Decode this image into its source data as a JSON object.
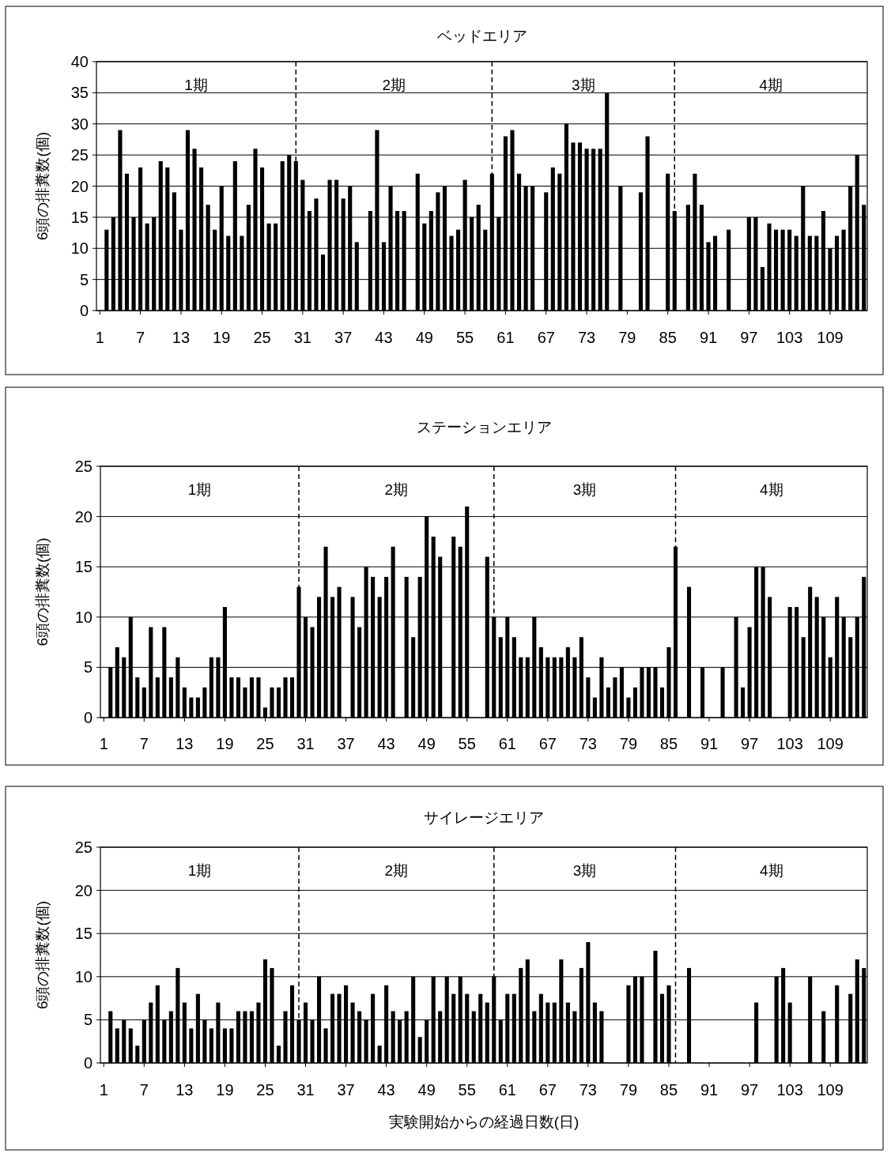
{
  "chart_data": [
    {
      "type": "bar",
      "title": "ベッドエリア",
      "ylabel": "6頭の排糞数(個)",
      "color": "#000000",
      "grid": "y",
      "x": [
        1,
        2,
        3,
        4,
        5,
        6,
        7,
        8,
        9,
        10,
        11,
        12,
        13,
        14,
        15,
        16,
        17,
        18,
        19,
        20,
        21,
        22,
        23,
        24,
        25,
        26,
        27,
        28,
        29,
        30,
        31,
        32,
        33,
        34,
        35,
        36,
        37,
        38,
        39,
        40,
        41,
        42,
        43,
        44,
        45,
        46,
        47,
        48,
        49,
        50,
        51,
        52,
        53,
        54,
        55,
        56,
        57,
        58,
        59,
        60,
        61,
        62,
        63,
        64,
        65,
        66,
        67,
        68,
        69,
        70,
        71,
        72,
        73,
        74,
        75,
        76,
        77,
        78,
        79,
        80,
        81,
        82,
        83,
        84,
        85,
        86,
        87,
        88,
        89,
        90,
        91,
        92,
        93,
        94,
        95,
        96,
        97,
        98,
        99,
        100,
        101,
        102,
        103,
        104,
        105,
        106,
        107,
        108,
        109,
        110,
        111,
        112,
        113,
        114
      ],
      "values": [
        0,
        13,
        15,
        29,
        22,
        15,
        23,
        14,
        15,
        24,
        23,
        19,
        13,
        29,
        26,
        23,
        17,
        13,
        20,
        12,
        24,
        12,
        17,
        26,
        23,
        14,
        14,
        24,
        25,
        24,
        21,
        16,
        18,
        9,
        21,
        21,
        18,
        20,
        11,
        0,
        16,
        29,
        11,
        20,
        16,
        16,
        0,
        22,
        14,
        16,
        19,
        20,
        12,
        13,
        21,
        15,
        17,
        13,
        22,
        15,
        28,
        29,
        22,
        20,
        20,
        0,
        19,
        23,
        22,
        30,
        27,
        27,
        26,
        26,
        26,
        35,
        0,
        20,
        0,
        0,
        19,
        28,
        0,
        0,
        22,
        16,
        0,
        17,
        22,
        17,
        11,
        12,
        0,
        13,
        0,
        0,
        15,
        15,
        7,
        14,
        13,
        13,
        13,
        12,
        20,
        12,
        12,
        16,
        10,
        12,
        13,
        20,
        25,
        17
      ],
      "xlim": [
        0.5,
        114.5
      ],
      "xticks": [
        1,
        7,
        13,
        19,
        25,
        31,
        37,
        43,
        49,
        55,
        61,
        67,
        73,
        79,
        85,
        91,
        97,
        103,
        109
      ],
      "ylim": [
        0,
        40
      ],
      "yticks": [
        0,
        5,
        10,
        15,
        20,
        25,
        30,
        35,
        40
      ],
      "ref_lines": [
        {
          "axis": "x",
          "value": 30,
          "line_style": "dashed"
        },
        {
          "axis": "x",
          "value": 59,
          "line_style": "dashed"
        },
        {
          "axis": "x",
          "value": 86,
          "line_style": "dashed"
        }
      ],
      "annotations": [
        "1期",
        "2期",
        "3期",
        "4期"
      ]
    },
    {
      "type": "bar",
      "title": "ステーションエリア",
      "ylabel": "6頭の排糞数(個)",
      "color": "#000000",
      "grid": "y",
      "x": [
        1,
        2,
        3,
        4,
        5,
        6,
        7,
        8,
        9,
        10,
        11,
        12,
        13,
        14,
        15,
        16,
        17,
        18,
        19,
        20,
        21,
        22,
        23,
        24,
        25,
        26,
        27,
        28,
        29,
        30,
        31,
        32,
        33,
        34,
        35,
        36,
        37,
        38,
        39,
        40,
        41,
        42,
        43,
        44,
        45,
        46,
        47,
        48,
        49,
        50,
        51,
        52,
        53,
        54,
        55,
        56,
        57,
        58,
        59,
        60,
        61,
        62,
        63,
        64,
        65,
        66,
        67,
        68,
        69,
        70,
        71,
        72,
        73,
        74,
        75,
        76,
        77,
        78,
        79,
        80,
        81,
        82,
        83,
        84,
        85,
        86,
        87,
        88,
        89,
        90,
        91,
        92,
        93,
        94,
        95,
        96,
        97,
        98,
        99,
        100,
        101,
        102,
        103,
        104,
        105,
        106,
        107,
        108,
        109,
        110,
        111,
        112,
        113,
        114
      ],
      "values": [
        0,
        5,
        7,
        6,
        10,
        4,
        3,
        9,
        4,
        9,
        4,
        6,
        3,
        2,
        2,
        3,
        6,
        6,
        11,
        4,
        4,
        3,
        4,
        4,
        1,
        3,
        3,
        4,
        4,
        13,
        10,
        9,
        12,
        17,
        12,
        13,
        0,
        12,
        9,
        15,
        14,
        12,
        14,
        17,
        0,
        14,
        8,
        14,
        20,
        18,
        16,
        0,
        18,
        17,
        21,
        0,
        0,
        16,
        10,
        8,
        10,
        8,
        6,
        6,
        10,
        7,
        6,
        6,
        6,
        7,
        6,
        8,
        4,
        2,
        6,
        3,
        4,
        5,
        2,
        3,
        5,
        5,
        5,
        3,
        7,
        17,
        0,
        13,
        0,
        5,
        0,
        0,
        5,
        0,
        10,
        3,
        9,
        15,
        15,
        12,
        0,
        0,
        11,
        11,
        8,
        13,
        12,
        10,
        6,
        12,
        10,
        8,
        10,
        14
      ],
      "xlim": [
        0.5,
        114.5
      ],
      "xticks": [
        1,
        7,
        13,
        19,
        25,
        31,
        37,
        43,
        49,
        55,
        61,
        67,
        73,
        79,
        85,
        91,
        97,
        103,
        109
      ],
      "ylim": [
        0,
        25
      ],
      "yticks": [
        0,
        5,
        10,
        15,
        20,
        25
      ],
      "ref_lines": [
        {
          "axis": "x",
          "value": 30,
          "line_style": "dashed"
        },
        {
          "axis": "x",
          "value": 59,
          "line_style": "dashed"
        },
        {
          "axis": "x",
          "value": 86,
          "line_style": "dashed"
        }
      ],
      "annotations": [
        "1期",
        "2期",
        "3期",
        "4期"
      ]
    },
    {
      "type": "bar",
      "title": "サイレージエリア",
      "ylabel": "6頭の排糞数(個)",
      "xlabel": "実験開始からの経過日数(日)",
      "color": "#000000",
      "grid": "y",
      "x": [
        1,
        2,
        3,
        4,
        5,
        6,
        7,
        8,
        9,
        10,
        11,
        12,
        13,
        14,
        15,
        16,
        17,
        18,
        19,
        20,
        21,
        22,
        23,
        24,
        25,
        26,
        27,
        28,
        29,
        30,
        31,
        32,
        33,
        34,
        35,
        36,
        37,
        38,
        39,
        40,
        41,
        42,
        43,
        44,
        45,
        46,
        47,
        48,
        49,
        50,
        51,
        52,
        53,
        54,
        55,
        56,
        57,
        58,
        59,
        60,
        61,
        62,
        63,
        64,
        65,
        66,
        67,
        68,
        69,
        70,
        71,
        72,
        73,
        74,
        75,
        76,
        77,
        78,
        79,
        80,
        81,
        82,
        83,
        84,
        85,
        86,
        87,
        88,
        89,
        90,
        91,
        92,
        93,
        94,
        95,
        96,
        97,
        98,
        99,
        100,
        101,
        102,
        103,
        104,
        105,
        106,
        107,
        108,
        109,
        110,
        111,
        112,
        113,
        114
      ],
      "values": [
        0,
        6,
        4,
        5,
        4,
        2,
        5,
        7,
        9,
        5,
        6,
        11,
        7,
        4,
        8,
        5,
        4,
        7,
        4,
        4,
        6,
        6,
        6,
        7,
        12,
        11,
        2,
        6,
        9,
        5,
        7,
        5,
        10,
        4,
        8,
        8,
        9,
        7,
        6,
        5,
        8,
        2,
        9,
        6,
        5,
        6,
        10,
        3,
        5,
        10,
        6,
        10,
        8,
        10,
        8,
        6,
        8,
        7,
        10,
        5,
        8,
        8,
        11,
        12,
        6,
        8,
        7,
        7,
        12,
        7,
        6,
        11,
        14,
        7,
        6,
        0,
        0,
        0,
        9,
        10,
        10,
        0,
        13,
        8,
        9,
        0,
        0,
        11,
        0,
        0,
        0,
        0,
        0,
        0,
        0,
        0,
        0,
        7,
        0,
        0,
        10,
        11,
        7,
        0,
        0,
        10,
        0,
        6,
        0,
        9,
        0,
        8,
        12,
        11
      ],
      "xlim": [
        0.5,
        114.5
      ],
      "xticks": [
        1,
        7,
        13,
        19,
        25,
        31,
        37,
        43,
        49,
        55,
        61,
        67,
        73,
        79,
        85,
        91,
        97,
        103,
        109
      ],
      "ylim": [
        0,
        25
      ],
      "yticks": [
        0,
        5,
        10,
        15,
        20,
        25
      ],
      "ref_lines": [
        {
          "axis": "x",
          "value": 30,
          "line_style": "dashed"
        },
        {
          "axis": "x",
          "value": 59,
          "line_style": "dashed"
        },
        {
          "axis": "x",
          "value": 86,
          "line_style": "dashed"
        }
      ],
      "annotations": [
        "1期",
        "2期",
        "3期",
        "4期"
      ]
    }
  ]
}
